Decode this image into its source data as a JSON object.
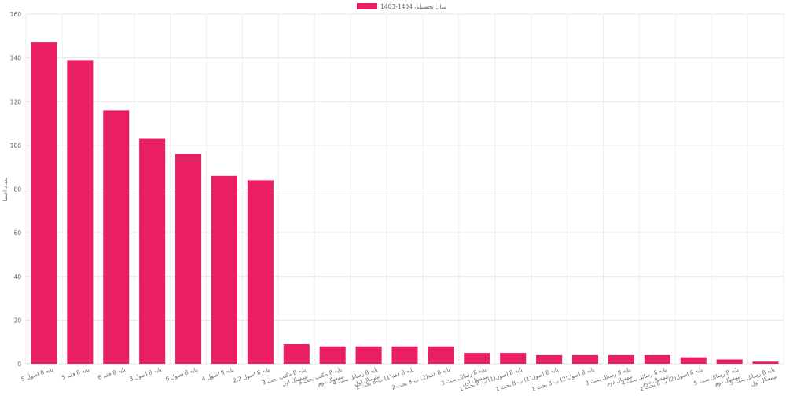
{
  "chart_data": {
    "type": "bar",
    "title": "",
    "legend": {
      "position": "top-center",
      "entries": [
        {
          "label": "سال تحصیلی 1404-1403",
          "color": "#e91e63"
        }
      ]
    },
    "xlabel": "",
    "ylabel": "تعداد اعضا",
    "ylim": [
      0,
      160
    ],
    "yticks": [
      0,
      20,
      40,
      60,
      80,
      100,
      120,
      140,
      160
    ],
    "grid": true,
    "series": [
      {
        "name": "سال تحصیلی 1404-1403",
        "color": "#e91e63",
        "values": [
          147,
          139,
          116,
          103,
          96,
          86,
          84,
          9,
          8,
          8,
          8,
          8,
          5,
          5,
          4,
          4,
          4,
          4,
          3,
          2,
          1
        ]
      }
    ],
    "categories": [
      [
        "پایه 8 اصول 5"
      ],
      [
        "پایه 8 فقه 5"
      ],
      [
        "پایه 8 فقه 6"
      ],
      [
        "پایه 8 اصول 3"
      ],
      [
        "پایه 8 اصول 6"
      ],
      [
        "پایه 8 اصول 4"
      ],
      [
        "پایه 8 اصول 2.2"
      ],
      [
        "پایه 8 مکتب بحث 3",
        "نیمسال اول"
      ],
      [
        "پایه 8 مکتب بحث 3",
        "نیمسال دوم"
      ],
      [
        "پایه 8 رسائل بحث 4",
        "نیمسال اول"
      ],
      [
        "پایه 8 فقه(1) ب-8 بحث 1"
      ],
      [
        "پایه 8 فقه(2) ب-8 بحث 2"
      ],
      [
        "پایه 8 رسائل بحث 3",
        "نیمسال اول"
      ],
      [
        "پایه 8 اصول(1) ب-8 بحث 1"
      ],
      [
        "پایه 8 اصول(1) ب-8 بحث 1"
      ],
      [
        "پایه 8 اصول(2) ب-8 بحث 1"
      ],
      [
        "پایه 8 رسائل بحث 3",
        "نیمسال دوم"
      ],
      [
        "پایه 8 رسائل بحث 4",
        "نیمسال دوم"
      ],
      [
        "پایه 8 اصول(2) ب-8 بحث 2"
      ],
      [
        "پایه 8 رسائل بحث 5",
        "نیمسال دوم"
      ],
      [
        "پایه 8 رسائل بحث 5",
        "نیمسال اول"
      ]
    ]
  }
}
